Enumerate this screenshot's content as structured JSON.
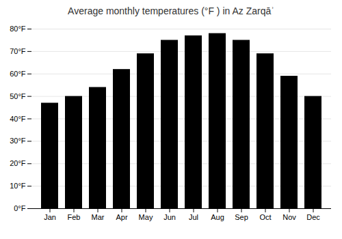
{
  "chart_data": {
    "type": "bar",
    "title": "Average monthly temperatures (°F ) in Az Zarqāʾ",
    "categories": [
      "Jan",
      "Feb",
      "Mar",
      "Apr",
      "May",
      "Jun",
      "Jul",
      "Aug",
      "Sep",
      "Oct",
      "Nov",
      "Dec"
    ],
    "values": [
      47,
      50,
      54,
      62,
      69,
      75,
      77,
      78,
      75,
      69,
      59,
      50
    ],
    "ylim": [
      0,
      80
    ],
    "yticks": [
      {
        "value": 0,
        "label": "0°F"
      },
      {
        "value": 10,
        "label": "10°F"
      },
      {
        "value": 20,
        "label": "20°F"
      },
      {
        "value": 30,
        "label": "30°F"
      },
      {
        "value": 40,
        "label": "40°F"
      },
      {
        "value": 50,
        "label": "50°F"
      },
      {
        "value": 60,
        "label": "60°F"
      },
      {
        "value": 70,
        "label": "70°F"
      },
      {
        "value": 80,
        "label": "80°F"
      }
    ],
    "grid": true
  }
}
